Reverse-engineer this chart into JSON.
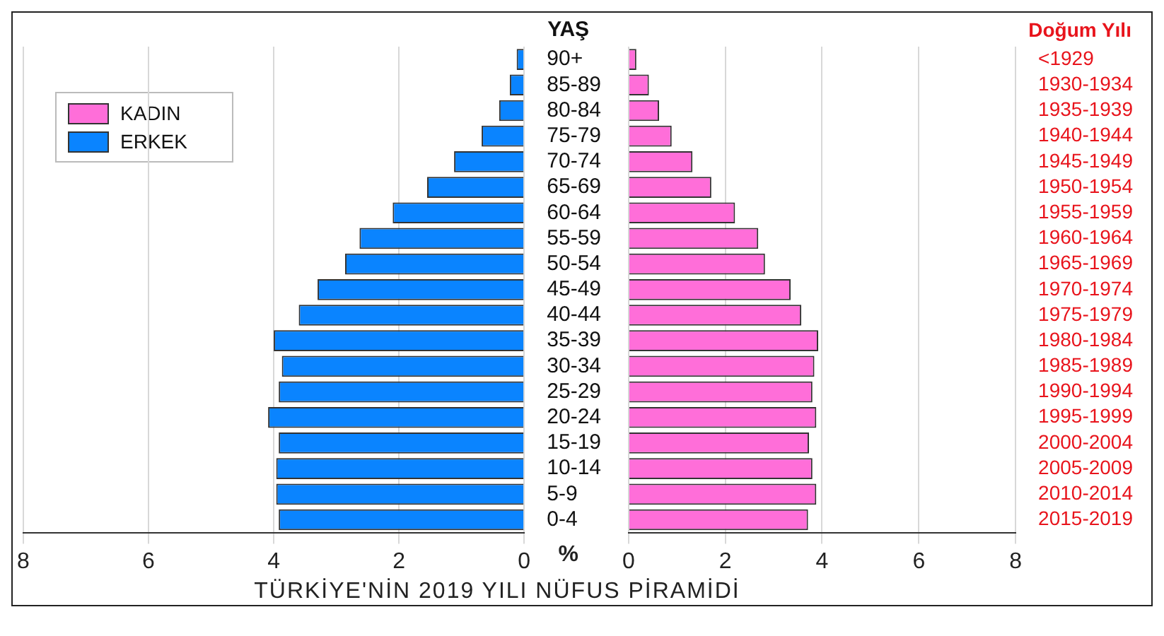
{
  "chart_data": [
    {
      "type": "bar",
      "orientation": "horizontal",
      "title": "TÜRKİYE'NİN 2019 YILI NÜFUS PİRAMİDİ",
      "ylabel": "YAŞ",
      "annotations": [
        "%"
      ],
      "categories": [
        "90+",
        "85-89",
        "80-84",
        "75-79",
        "70-74",
        "65-69",
        "60-64",
        "55-59",
        "50-54",
        "45-49",
        "40-44",
        "35-39",
        "30-34",
        "25-29",
        "20-24",
        "15-19",
        "10-14",
        "5-9",
        "0-4"
      ],
      "series": [
        {
          "name": "ERKEK",
          "color": "#0a84ff",
          "values": [
            0.12,
            0.23,
            0.4,
            0.68,
            1.12,
            1.55,
            2.1,
            2.63,
            2.86,
            3.3,
            3.6,
            4.0,
            3.87,
            3.92,
            4.09,
            3.92,
            3.96,
            3.96,
            3.92
          ]
        }
      ],
      "xlim": [
        8,
        0
      ],
      "xticks": [
        8,
        6,
        4,
        2,
        0
      ],
      "grid": "x",
      "legend": "top left"
    },
    {
      "type": "bar",
      "orientation": "horizontal",
      "ylabel": "Doğum Yılı",
      "categories": [
        "<1929",
        "1930-1934",
        "1935-1939",
        "1940-1944",
        "1945-1949",
        "1950-1954",
        "1955-1959",
        "1960-1964",
        "1965-1969",
        "1970-1974",
        "1975-1979",
        "1980-1984",
        "1985-1989",
        "1990-1994",
        "1995-1999",
        "2000-2004",
        "2005-2009",
        "2010-2014",
        "2015-2019"
      ],
      "series": [
        {
          "name": "KADIN",
          "color": "#ff6ed9",
          "values": [
            0.16,
            0.42,
            0.63,
            0.89,
            1.32,
            1.71,
            2.2,
            2.68,
            2.82,
            3.35,
            3.57,
            3.92,
            3.84,
            3.8,
            3.88,
            3.73,
            3.8,
            3.88,
            3.71
          ]
        }
      ],
      "xlim": [
        0,
        8
      ],
      "xticks": [
        0,
        2,
        4,
        6,
        8
      ],
      "grid": "x"
    }
  ]
}
